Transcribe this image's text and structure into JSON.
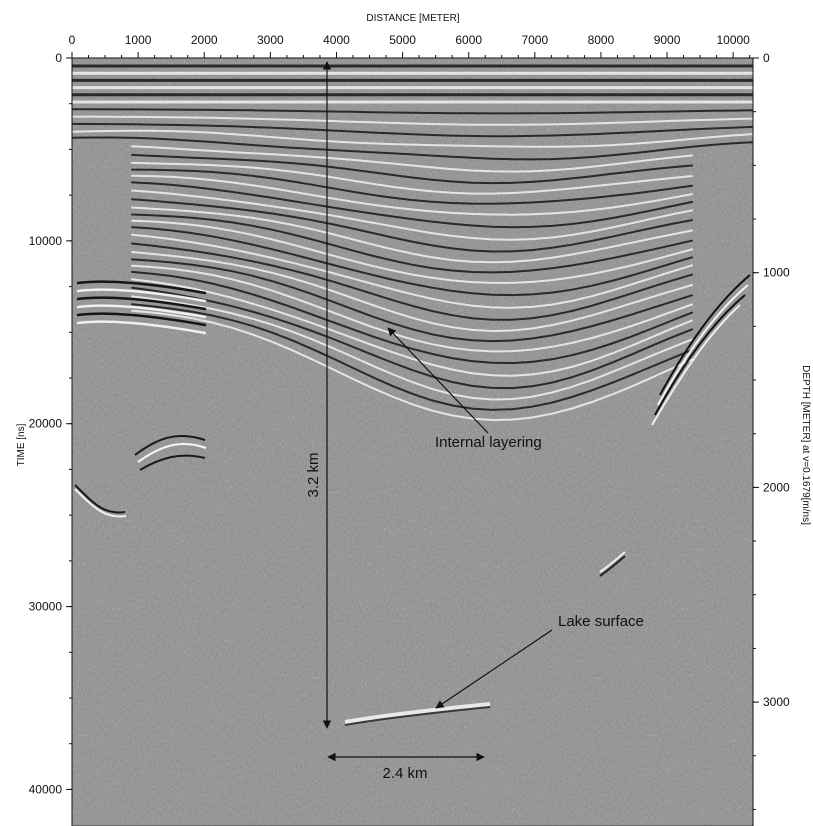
{
  "figure": {
    "top_axis_label": "DISTANCE [METER]",
    "left_axis_label": "TIME [ns]",
    "right_axis_label": "DEPTH [METER] at v=0.1679[m/ns]",
    "annotations": {
      "internal_layering": "Internal layering",
      "lake_surface": "Lake surface",
      "vertical_scale": "3.2 km",
      "horizontal_scale": "2.4 km"
    }
  },
  "chart_data": {
    "type": "image",
    "x_axis": {
      "label": "DISTANCE [METER]",
      "range": [
        0,
        10300
      ],
      "ticks": [
        0,
        1000,
        2000,
        3000,
        4000,
        5000,
        6000,
        7000,
        8000,
        9000,
        10000
      ],
      "tick_labels": [
        "0",
        "1000",
        "2000",
        "3000",
        "4000",
        "5000",
        "6000",
        "7000",
        "8000",
        "9000",
        "10000"
      ]
    },
    "y_left_axis": {
      "label": "TIME [ns]",
      "range": [
        0,
        42000
      ],
      "ticks": [
        0,
        10000,
        20000,
        30000,
        40000
      ],
      "tick_labels": [
        "0",
        "10000",
        "20000",
        "30000",
        "40000"
      ]
    },
    "y_right_axis": {
      "label": "DEPTH [METER] at v=0.1679[m/ns]",
      "range": [
        0,
        3500
      ],
      "ticks": [
        0,
        1000,
        2000,
        3000
      ],
      "tick_labels": [
        "0",
        "1000",
        "2000",
        "3000"
      ]
    },
    "annotations": [
      "Internal layering",
      "Lake surface",
      "3.2 km",
      "2.4 km"
    ]
  }
}
